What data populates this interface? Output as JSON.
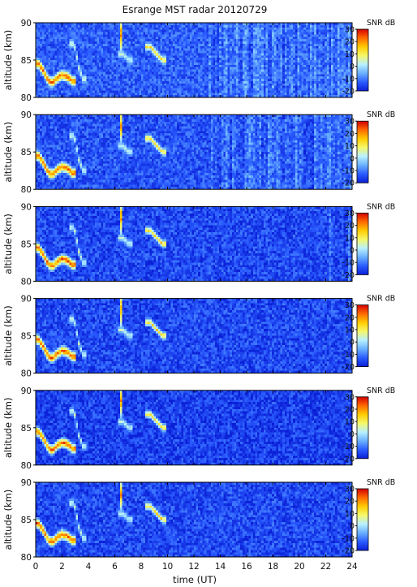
{
  "chart_data": {
    "type": "heatmap",
    "title": "Esrange MST radar 20120729",
    "xlabel": "time (UT)",
    "x_ticks": [
      "0",
      "2",
      "4",
      "6",
      "8",
      "10",
      "12",
      "14",
      "16",
      "18",
      "20",
      "22",
      "24"
    ],
    "xlim": [
      0,
      24
    ],
    "colorbar_ticks": [
      "30",
      "20",
      "10",
      "0",
      "-10",
      "-20"
    ],
    "colorbar_label": "SNR dB",
    "clim": [
      -20,
      30
    ],
    "colormap": [
      "#0a1fd6",
      "#2a5cff",
      "#6ab0ff",
      "#b8f0ff",
      "#f6f86a",
      "#ffcc00",
      "#ff6a00",
      "#d40000"
    ],
    "panels": [
      {
        "ylabel": "altitude (km)",
        "y_ticks": [
          "90",
          "85",
          "80"
        ],
        "ylim": [
          80,
          90
        ],
        "background_snr_db": -13,
        "noise_band_hours": [
          13.2,
          24
        ]
      },
      {
        "ylabel": "altitude (km)",
        "y_ticks": [
          "90",
          "85",
          "80"
        ],
        "ylim": [
          80,
          90
        ],
        "background_snr_db": -14,
        "noise_band_hours": [
          13.2,
          24
        ]
      },
      {
        "ylabel": "altitude (km)",
        "y_ticks": [
          "90",
          "85",
          "80"
        ],
        "ylim": [
          80,
          90
        ],
        "background_snr_db": -15,
        "noise_band_hours": [
          22.3,
          24
        ]
      },
      {
        "ylabel": "altitude (km)",
        "y_ticks": [
          "90",
          "85",
          "80"
        ],
        "ylim": [
          80,
          90
        ],
        "background_snr_db": -15,
        "noise_band_hours": []
      },
      {
        "ylabel": "altitude (km)",
        "y_ticks": [
          "90",
          "85",
          "80"
        ],
        "ylim": [
          80,
          90
        ],
        "background_snr_db": -16,
        "noise_band_hours": []
      },
      {
        "ylabel": "altitude (km)",
        "y_ticks": [
          "90",
          "85",
          "80"
        ],
        "ylim": [
          80,
          90
        ],
        "background_snr_db": -15,
        "noise_band_hours": []
      }
    ],
    "echo_features": [
      {
        "kind": "pmse-layer",
        "t_hours": [
          0.2,
          0.5,
          0.8,
          1.0,
          1.3,
          1.6,
          2.0,
          2.4,
          2.8
        ],
        "alt_km": [
          84.5,
          83.8,
          82.8,
          82.2,
          82.0,
          82.6,
          83.0,
          82.8,
          82.2
        ],
        "peak_snr_db": 30
      },
      {
        "kind": "pmse-streak",
        "t_hours": [
          2.9,
          3.1,
          3.3,
          3.6
        ],
        "alt_km": [
          87.2,
          85.5,
          83.8,
          82.5
        ],
        "peak_snr_db": 8
      },
      {
        "kind": "pmse-patch",
        "t_hours": [
          6.6,
          6.8,
          7.0
        ],
        "alt_km": [
          85.8,
          85.5,
          85.0
        ],
        "peak_snr_db": 6
      },
      {
        "kind": "pmse-patch",
        "t_hours": [
          8.7,
          9.0,
          9.3,
          9.6
        ],
        "alt_km": [
          86.8,
          86.2,
          85.6,
          85.0
        ],
        "peak_snr_db": 18
      },
      {
        "kind": "interference-spike",
        "t_hours": [
          6.55
        ],
        "alt_km": [
          88.5
        ],
        "peak_snr_db": 25
      }
    ]
  }
}
